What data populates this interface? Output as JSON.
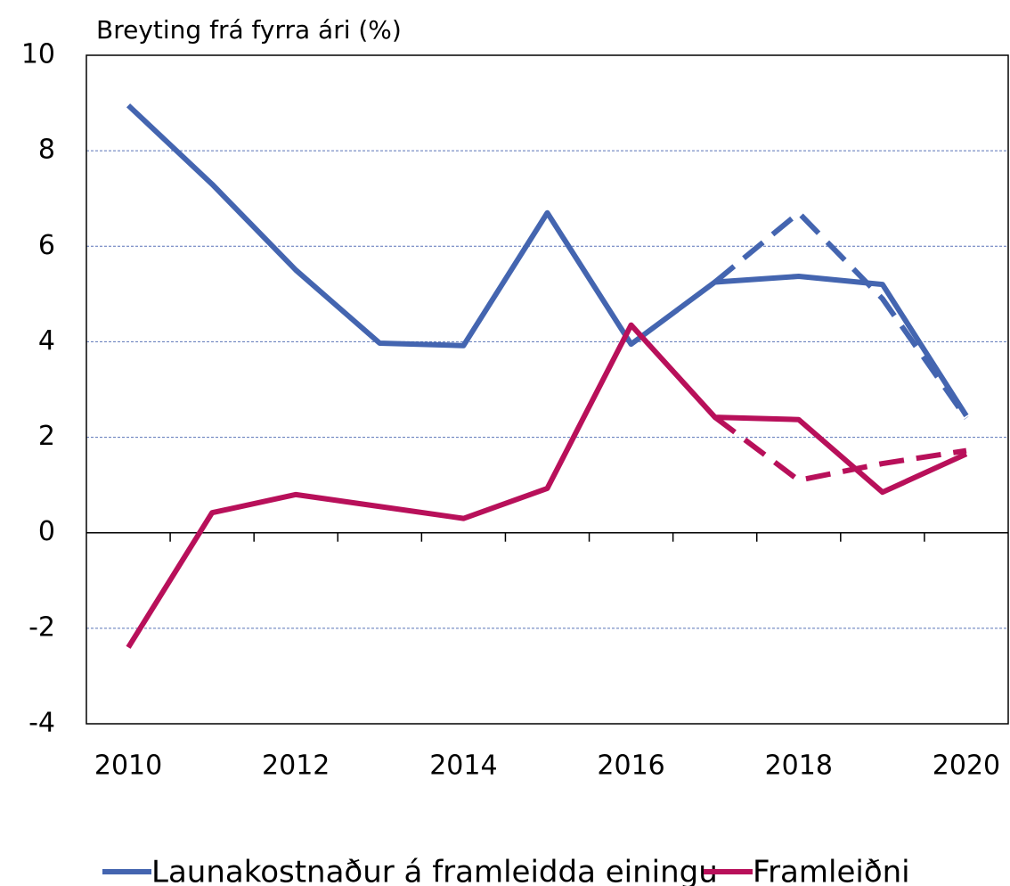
{
  "chart_data": {
    "type": "line",
    "title": "Breyting frá fyrra ári (%)",
    "x": [
      2010,
      2011,
      2012,
      2013,
      2014,
      2015,
      2016,
      2017,
      2018,
      2019,
      2020
    ],
    "xlim": [
      2009.5,
      2020.5
    ],
    "xticks": [
      2010,
      2012,
      2014,
      2016,
      2018,
      2020
    ],
    "ylim": [
      -4,
      10
    ],
    "yticks": [
      -4,
      -2,
      0,
      2,
      4,
      6,
      8,
      10
    ],
    "grid": true,
    "legend": "bottom",
    "series": [
      {
        "name": "Launakostnaður á framleidda einingu",
        "color": "#4465b0",
        "values": [
          8.95,
          7.3,
          5.5,
          3.97,
          3.92,
          6.7,
          3.95,
          5.25,
          5.37,
          5.2,
          2.45
        ]
      },
      {
        "name": "Framleiðni",
        "color": "#b8105a",
        "values": [
          -2.4,
          0.42,
          0.8,
          0.55,
          0.3,
          0.93,
          4.35,
          2.42,
          2.37,
          0.85,
          1.65
        ]
      },
      {
        "color": "#4465b0",
        "dashed": true,
        "values": [
          null,
          null,
          null,
          null,
          null,
          null,
          null,
          5.25,
          6.7,
          4.9,
          2.4
        ]
      },
      {
        "color": "#b8105a",
        "dashed": true,
        "values": [
          null,
          null,
          null,
          null,
          null,
          null,
          null,
          2.42,
          1.1,
          1.45,
          1.72
        ]
      }
    ]
  }
}
